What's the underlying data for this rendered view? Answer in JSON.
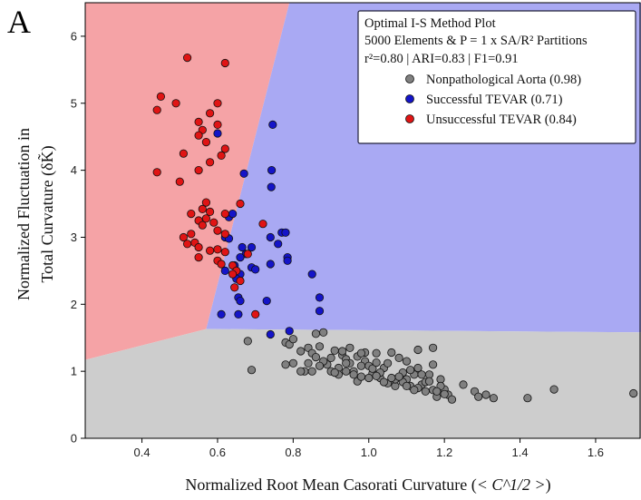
{
  "panel_label": "A",
  "chart_data": {
    "type": "scatter",
    "xlabel_prefix": "Normalized Root Mean Casorati Curvature (",
    "xlabel_math": "< C^1/2 >",
    "xlabel_suffix": ")",
    "ylabel_line1": "Normalized Fluctuation in",
    "ylabel_line2": "Total Curvature (δK̃)",
    "xlim": [
      0.25,
      1.72
    ],
    "ylim": [
      0,
      6.5
    ],
    "xticks": [
      0.4,
      0.6,
      0.8,
      1.0,
      1.2,
      1.4,
      1.6
    ],
    "xtick_labels": [
      "0.4",
      "0.6",
      "0.8",
      "1.0",
      "1.2",
      "1.4",
      "1.6"
    ],
    "yticks": [
      0,
      1,
      2,
      3,
      4,
      5,
      6
    ],
    "ytick_labels": [
      "0",
      "1",
      "2",
      "3",
      "4",
      "5",
      "6"
    ],
    "grid": false,
    "legend": {
      "placement": "top-right",
      "title_line1": "Optimal I-S Method Plot",
      "title_line2": "5000 Elements & P = 1 x SA/R² Partitions",
      "metrics": "r²=0.80 | ARI=0.83 | F1=0.91"
    },
    "regions": [
      {
        "name": "Unsuccessful TEVAR",
        "color": "#f5a3a6",
        "polygon": [
          [
            0.25,
            1.17
          ],
          [
            0.57,
            1.63
          ],
          [
            0.79,
            6.5
          ],
          [
            0.25,
            6.5
          ]
        ]
      },
      {
        "name": "Successful TEVAR",
        "color": "#a9a9f3",
        "polygon": [
          [
            0.57,
            1.63
          ],
          [
            0.79,
            6.5
          ],
          [
            1.72,
            6.5
          ],
          [
            1.72,
            1.58
          ]
        ]
      },
      {
        "name": "Nonpathological Aorta",
        "color": "#cdcdcd",
        "polygon": [
          [
            0.25,
            0
          ],
          [
            1.72,
            0
          ],
          [
            1.72,
            1.58
          ],
          [
            0.57,
            1.63
          ],
          [
            0.25,
            1.17
          ]
        ]
      }
    ],
    "series": [
      {
        "name": "Nonpathological Aorta (0.98)",
        "color": "#808080",
        "points": [
          [
            0.68,
            1.45
          ],
          [
            0.69,
            1.02
          ],
          [
            0.78,
            1.43
          ],
          [
            0.79,
            1.4
          ],
          [
            0.8,
            1.48
          ],
          [
            0.78,
            1.1
          ],
          [
            0.8,
            1.12
          ],
          [
            0.82,
            1.3
          ],
          [
            0.83,
            1.0
          ],
          [
            0.84,
            1.35
          ],
          [
            0.85,
            1.27
          ],
          [
            0.86,
            1.21
          ],
          [
            0.87,
            1.37
          ],
          [
            0.85,
            1.0
          ],
          [
            0.88,
            1.58
          ],
          [
            0.86,
            1.56
          ],
          [
            0.89,
            1.1
          ],
          [
            0.9,
            1.0
          ],
          [
            0.91,
            1.31
          ],
          [
            0.92,
            1.05
          ],
          [
            0.93,
            1.24
          ],
          [
            0.94,
            1.18
          ],
          [
            0.95,
            1.12
          ],
          [
            0.96,
            1.0
          ],
          [
            0.97,
            0.85
          ],
          [
            0.98,
            0.92
          ],
          [
            0.99,
            1.15
          ],
          [
            1.0,
            1.08
          ],
          [
            1.01,
            0.97
          ],
          [
            1.02,
            1.27
          ],
          [
            1.03,
            0.9
          ],
          [
            1.04,
            1.05
          ],
          [
            1.05,
            1.12
          ],
          [
            1.06,
            0.86
          ],
          [
            1.07,
            0.78
          ],
          [
            1.08,
            1.2
          ],
          [
            1.09,
            0.98
          ],
          [
            1.1,
            0.88
          ],
          [
            1.11,
            0.78
          ],
          [
            1.12,
            0.95
          ],
          [
            1.13,
            1.05
          ],
          [
            1.14,
            0.8
          ],
          [
            1.15,
            0.7
          ],
          [
            1.16,
            0.95
          ],
          [
            1.17,
            0.72
          ],
          [
            1.18,
            0.62
          ],
          [
            1.19,
            0.88
          ],
          [
            1.2,
            0.73
          ],
          [
            1.21,
            0.65
          ],
          [
            0.93,
            1.3
          ],
          [
            0.95,
            1.35
          ],
          [
            0.97,
            1.22
          ],
          [
            0.99,
            1.28
          ],
          [
            1.01,
            1.04
          ],
          [
            1.03,
            0.98
          ],
          [
            1.05,
            0.82
          ],
          [
            1.07,
            0.88
          ],
          [
            1.09,
            0.84
          ],
          [
            1.11,
            1.02
          ],
          [
            1.13,
            0.75
          ],
          [
            1.15,
            0.84
          ],
          [
            1.17,
            1.1
          ],
          [
            1.19,
            0.78
          ],
          [
            0.9,
            1.2
          ],
          [
            0.92,
            0.95
          ],
          [
            0.94,
            1.0
          ],
          [
            0.96,
            0.95
          ],
          [
            0.98,
            1.08
          ],
          [
            1.0,
            0.9
          ],
          [
            1.02,
            0.93
          ],
          [
            1.04,
            0.84
          ],
          [
            1.06,
            0.9
          ],
          [
            1.08,
            0.92
          ],
          [
            1.1,
            0.78
          ],
          [
            1.12,
            0.72
          ],
          [
            1.14,
            0.95
          ],
          [
            1.16,
            0.85
          ],
          [
            1.18,
            0.7
          ],
          [
            1.2,
            0.66
          ],
          [
            1.22,
            0.58
          ],
          [
            1.25,
            0.8
          ],
          [
            1.28,
            0.7
          ],
          [
            1.29,
            0.62
          ],
          [
            1.31,
            0.65
          ],
          [
            1.33,
            0.6
          ],
          [
            1.42,
            0.6
          ],
          [
            1.49,
            0.73
          ],
          [
            1.7,
            0.67
          ],
          [
            1.17,
            1.35
          ],
          [
            1.13,
            1.32
          ],
          [
            1.1,
            1.15
          ],
          [
            1.06,
            1.28
          ],
          [
            1.02,
            1.13
          ],
          [
            0.98,
            1.27
          ],
          [
            0.94,
            1.12
          ],
          [
            0.91,
            0.98
          ],
          [
            0.88,
            1.15
          ],
          [
            0.87,
            1.08
          ],
          [
            0.84,
            1.12
          ],
          [
            0.82,
            1.0
          ]
        ]
      },
      {
        "name": "Successful TEVAR (0.71)",
        "color": "#1414c8",
        "points": [
          [
            0.746,
            4.68
          ],
          [
            0.743,
            4.0
          ],
          [
            0.742,
            3.75
          ],
          [
            0.6,
            4.55
          ],
          [
            0.67,
            3.95
          ],
          [
            0.63,
            3.3
          ],
          [
            0.64,
            3.35
          ],
          [
            0.665,
            2.85
          ],
          [
            0.675,
            2.75
          ],
          [
            0.69,
            2.85
          ],
          [
            0.66,
            2.7
          ],
          [
            0.69,
            2.55
          ],
          [
            0.7,
            2.52
          ],
          [
            0.66,
            2.45
          ],
          [
            0.62,
            2.5
          ],
          [
            0.645,
            2.58
          ],
          [
            0.65,
            2.38
          ],
          [
            0.655,
            2.1
          ],
          [
            0.66,
            2.05
          ],
          [
            0.655,
            1.85
          ],
          [
            0.61,
            1.85
          ],
          [
            0.73,
            2.05
          ],
          [
            0.74,
            2.6
          ],
          [
            0.74,
            3.0
          ],
          [
            0.76,
            2.9
          ],
          [
            0.77,
            3.07
          ],
          [
            0.78,
            3.07
          ],
          [
            0.785,
            2.7
          ],
          [
            0.785,
            2.65
          ],
          [
            0.85,
            2.45
          ],
          [
            0.87,
            2.1
          ],
          [
            0.87,
            1.9
          ],
          [
            0.79,
            1.6
          ],
          [
            0.74,
            1.55
          ],
          [
            0.62,
            3.0
          ],
          [
            0.63,
            2.98
          ]
        ]
      },
      {
        "name": "Unsuccessful TEVAR (0.84)",
        "color": "#e01414",
        "points": [
          [
            0.52,
            5.68
          ],
          [
            0.62,
            5.6
          ],
          [
            0.45,
            5.1
          ],
          [
            0.49,
            5.0
          ],
          [
            0.6,
            5.0
          ],
          [
            0.44,
            4.9
          ],
          [
            0.58,
            4.85
          ],
          [
            0.55,
            4.72
          ],
          [
            0.56,
            4.6
          ],
          [
            0.6,
            4.68
          ],
          [
            0.55,
            4.52
          ],
          [
            0.57,
            4.42
          ],
          [
            0.62,
            4.32
          ],
          [
            0.51,
            4.25
          ],
          [
            0.61,
            4.22
          ],
          [
            0.58,
            4.12
          ],
          [
            0.55,
            4.0
          ],
          [
            0.44,
            3.97
          ],
          [
            0.5,
            3.83
          ],
          [
            0.66,
            3.5
          ],
          [
            0.57,
            3.52
          ],
          [
            0.56,
            3.42
          ],
          [
            0.53,
            3.35
          ],
          [
            0.58,
            3.38
          ],
          [
            0.57,
            3.28
          ],
          [
            0.62,
            3.35
          ],
          [
            0.55,
            3.25
          ],
          [
            0.56,
            3.18
          ],
          [
            0.59,
            3.22
          ],
          [
            0.6,
            3.1
          ],
          [
            0.62,
            3.05
          ],
          [
            0.53,
            3.05
          ],
          [
            0.51,
            3.0
          ],
          [
            0.54,
            2.92
          ],
          [
            0.52,
            2.9
          ],
          [
            0.55,
            2.85
          ],
          [
            0.58,
            2.8
          ],
          [
            0.6,
            2.82
          ],
          [
            0.62,
            2.78
          ],
          [
            0.6,
            2.65
          ],
          [
            0.61,
            2.6
          ],
          [
            0.64,
            2.58
          ],
          [
            0.65,
            2.5
          ],
          [
            0.64,
            2.45
          ],
          [
            0.66,
            2.35
          ],
          [
            0.72,
            3.2
          ],
          [
            0.7,
            1.85
          ],
          [
            0.68,
            2.75
          ],
          [
            0.55,
            2.7
          ],
          [
            0.645,
            2.25
          ]
        ]
      }
    ]
  }
}
